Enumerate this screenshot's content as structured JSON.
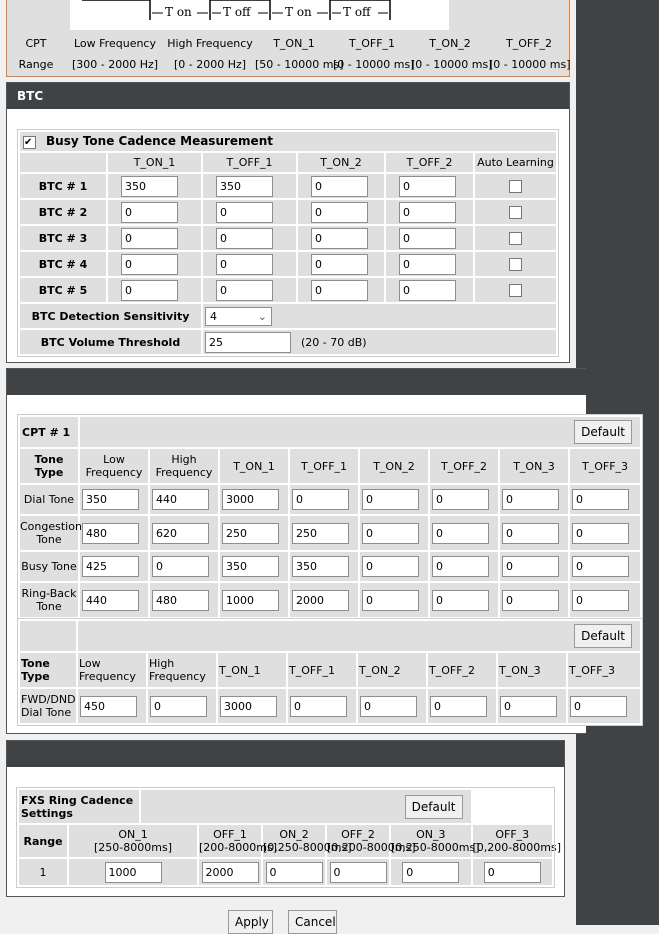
{
  "cpt_reference": {
    "diagram_labels": [
      "T on",
      "T off",
      "T on",
      "T off"
    ],
    "header_row": [
      "CPT",
      "Low Frequency",
      "High Frequency",
      "T_ON_1",
      "T_OFF_1",
      "T_ON_2",
      "T_OFF_2"
    ],
    "range_row": [
      "Range",
      "[300 - 2000 Hz]",
      "[0 - 2000 Hz]",
      "[50 - 10000 ms]",
      "[0 - 10000 ms]",
      "[0 - 10000 ms]",
      "[0 - 10000 ms]"
    ]
  },
  "btc": {
    "title": "BTC",
    "measurement_label": "Busy Tone Cadence Measurement",
    "measurement_checked": true,
    "columns": [
      "T_ON_1",
      "T_OFF_1",
      "T_ON_2",
      "T_OFF_2",
      "Auto Learning"
    ],
    "rows": [
      {
        "label": "BTC # 1",
        "values": [
          "350",
          "350",
          "0",
          "0"
        ],
        "auto_learning": false
      },
      {
        "label": "BTC # 2",
        "values": [
          "0",
          "0",
          "0",
          "0"
        ],
        "auto_learning": false
      },
      {
        "label": "BTC # 3",
        "values": [
          "0",
          "0",
          "0",
          "0"
        ],
        "auto_learning": false
      },
      {
        "label": "BTC # 4",
        "values": [
          "0",
          "0",
          "0",
          "0"
        ],
        "auto_learning": false
      },
      {
        "label": "BTC # 5",
        "values": [
          "0",
          "0",
          "0",
          "0"
        ],
        "auto_learning": false
      }
    ],
    "sensitivity_label": "BTC Detection Sensitivity",
    "sensitivity_value": "4",
    "volume_label": "BTC Volume Threshold",
    "volume_value": "25",
    "volume_range": "(20 - 70 dB)"
  },
  "cpt": {
    "title": "CPT # 1",
    "default_label": "Default",
    "columns": [
      "Tone Type",
      "Low Frequency",
      "High Frequency",
      "T_ON_1",
      "T_OFF_1",
      "T_ON_2",
      "T_OFF_2",
      "T_ON_3",
      "T_OFF_3"
    ],
    "rows": [
      {
        "label": "Dial Tone",
        "values": [
          "350",
          "440",
          "3000",
          "0",
          "0",
          "0",
          "0",
          "0"
        ]
      },
      {
        "label": "Congestion Tone",
        "values": [
          "480",
          "620",
          "250",
          "250",
          "0",
          "0",
          "0",
          "0"
        ]
      },
      {
        "label": "Busy Tone",
        "values": [
          "425",
          "0",
          "350",
          "350",
          "0",
          "0",
          "0",
          "0"
        ]
      },
      {
        "label": "Ring-Back Tone",
        "values": [
          "440",
          "480",
          "1000",
          "2000",
          "0",
          "0",
          "0",
          "0"
        ]
      }
    ]
  },
  "fwd": {
    "default_label": "Default",
    "columns": [
      "Tone Type",
      "Low Frequency",
      "High Frequency",
      "T_ON_1",
      "T_OFF_1",
      "T_ON_2",
      "T_OFF_2",
      "T_ON_3",
      "T_OFF_3"
    ],
    "rows": [
      {
        "label": "FWD/DND Dial Tone",
        "values": [
          "450",
          "0",
          "3000",
          "0",
          "0",
          "0",
          "0",
          "0"
        ]
      }
    ]
  },
  "ring": {
    "title": "FXS Ring Cadence Settings",
    "default_label": "Default",
    "range_label": "Range",
    "columns": [
      {
        "name": "ON_1",
        "range": "[250-8000ms]"
      },
      {
        "name": "OFF_1",
        "range": "[200-8000ms]"
      },
      {
        "name": "ON_2",
        "range": "[0,250-8000ms]"
      },
      {
        "name": "OFF_2",
        "range": "[0,200-8000ms]"
      },
      {
        "name": "ON_3",
        "range": "[0,250-8000ms]"
      },
      {
        "name": "OFF_3",
        "range": "[0,200-8000ms]"
      }
    ],
    "rows": [
      {
        "label": "1",
        "values": [
          "1000",
          "2000",
          "0",
          "0",
          "0",
          "0"
        ]
      }
    ]
  },
  "actions": {
    "apply": "Apply",
    "cancel": "Cancel"
  },
  "colors": {
    "accent_border": "#f07a28",
    "header_bg": "#3f4345",
    "cell_bg": "#dfdfdf"
  }
}
